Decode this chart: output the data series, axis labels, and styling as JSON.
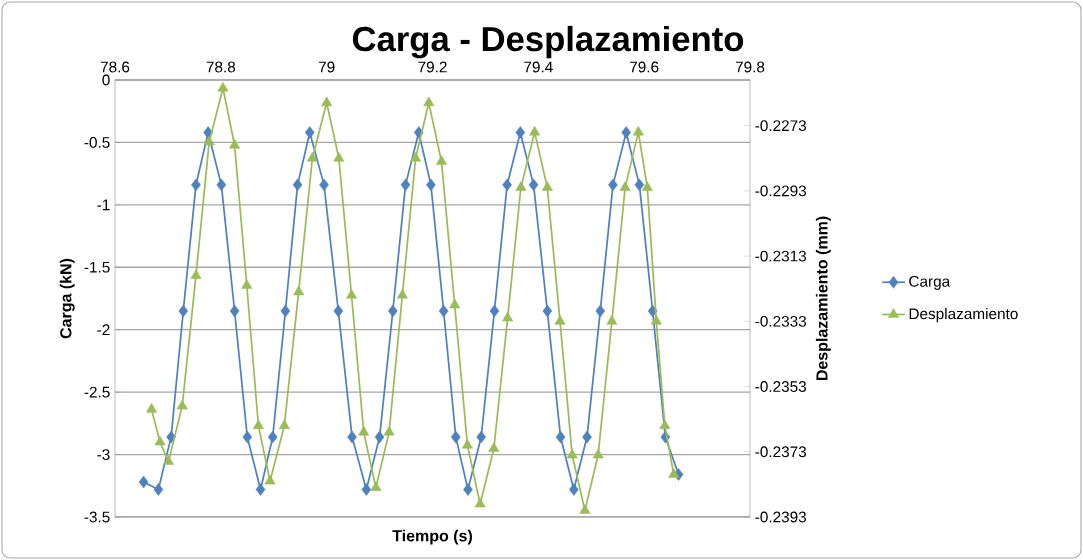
{
  "chart_data": {
    "type": "line",
    "title": "Carga - Desplazamiento",
    "xlabel": "Tiempo (s)",
    "ylabel": "Carga (kN)",
    "y2label": "Desplazamiento (mm)",
    "xlim": [
      78.6,
      79.8
    ],
    "xticks": [
      78.6,
      78.8,
      79,
      79.2,
      79.4,
      79.6,
      79.8
    ],
    "ylim": [
      -3.5,
      0
    ],
    "yticks": [
      -3.5,
      -3,
      -2.5,
      -2,
      -1.5,
      -1,
      -0.5,
      0
    ],
    "y2lim": [
      -0.2393,
      -0.2259
    ],
    "y2ticks": [
      -0.2393,
      -0.2373,
      -0.2353,
      -0.2333,
      -0.2313,
      -0.2293,
      -0.2273
    ],
    "grid": "y",
    "legend": "right",
    "series": [
      {
        "name": "Carga",
        "color": "#4f81bd",
        "marker": "diamond",
        "x": [
          78.654,
          78.682,
          78.706,
          78.729,
          78.753,
          78.776,
          78.801,
          78.826,
          78.85,
          78.875,
          78.898,
          78.922,
          78.945,
          78.968,
          78.995,
          79.022,
          79.048,
          79.075,
          79.1,
          79.125,
          79.149,
          79.174,
          79.197,
          79.221,
          79.244,
          79.267,
          79.292,
          79.317,
          79.341,
          79.366,
          79.391,
          79.417,
          79.442,
          79.467,
          79.492,
          79.517,
          79.541,
          79.566,
          79.591,
          79.616,
          79.64,
          79.665
        ],
        "values": [
          -3.22,
          -3.28,
          -2.86,
          -1.85,
          -0.84,
          -0.42,
          -0.84,
          -1.85,
          -2.86,
          -3.28,
          -2.86,
          -1.85,
          -0.84,
          -0.42,
          -0.84,
          -1.85,
          -2.86,
          -3.28,
          -2.86,
          -1.85,
          -0.84,
          -0.42,
          -0.84,
          -1.85,
          -2.86,
          -3.28,
          -2.86,
          -1.85,
          -0.84,
          -0.42,
          -0.84,
          -1.85,
          -2.86,
          -3.28,
          -2.86,
          -1.85,
          -0.84,
          -0.42,
          -0.84,
          -1.85,
          -2.86,
          -3.16
        ]
      },
      {
        "name": "Desplazamiento",
        "color": "#9bbb59",
        "marker": "triangle",
        "axis": "y2",
        "x": [
          78.669,
          78.685,
          78.701,
          78.727,
          78.753,
          78.778,
          78.804,
          78.826,
          78.849,
          78.871,
          78.893,
          78.92,
          78.947,
          78.973,
          79.0,
          79.023,
          79.047,
          79.07,
          79.093,
          79.118,
          79.143,
          79.168,
          79.193,
          79.217,
          79.242,
          79.266,
          79.29,
          79.316,
          79.342,
          79.367,
          79.393,
          79.417,
          79.441,
          79.464,
          79.488,
          79.513,
          79.539,
          79.564,
          79.589,
          79.606,
          79.623,
          79.639,
          79.656
        ],
        "values": [
          -0.236,
          -0.237,
          -0.2376,
          -0.2359,
          -0.2319,
          -0.2278,
          -0.22615,
          -0.2279,
          -0.2322,
          -0.2365,
          -0.2382,
          -0.2365,
          -0.2324,
          -0.2283,
          -0.2266,
          -0.2283,
          -0.2325,
          -0.2367,
          -0.2384,
          -0.2367,
          -0.2325,
          -0.2283,
          -0.2266,
          -0.2284,
          -0.2328,
          -0.2371,
          -0.2389,
          -0.2372,
          -0.2332,
          -0.2292,
          -0.2275,
          -0.2292,
          -0.2333,
          -0.2374,
          -0.2391,
          -0.2374,
          -0.2333,
          -0.2292,
          -0.2275,
          -0.2292,
          -0.2333,
          -0.2365,
          -0.238
        ]
      }
    ]
  }
}
